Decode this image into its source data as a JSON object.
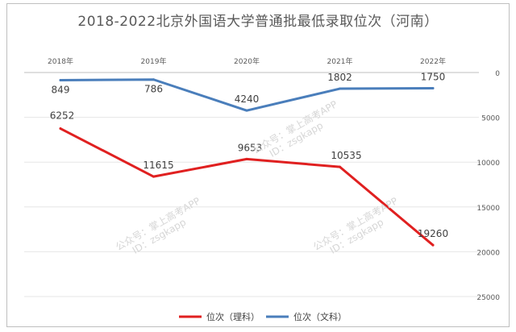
{
  "chart_data": {
    "type": "line",
    "title": "2018-2022北京外国语大学普通批最低录取位次（河南）",
    "categories": [
      "2018年",
      "2019年",
      "2020年",
      "2021年",
      "2022年"
    ],
    "series": [
      {
        "name": "位次（理科）",
        "color": "#e02020",
        "values": [
          6252,
          11615,
          9653,
          10535,
          19260
        ]
      },
      {
        "name": "位次（文科）",
        "color": "#4a7ebb",
        "values": [
          849,
          786,
          4240,
          1802,
          1750
        ]
      }
    ],
    "y_axis": {
      "reversed": true,
      "position": "right",
      "ylim": [
        0,
        25000
      ],
      "ticks": [
        0,
        5000,
        10000,
        15000,
        20000,
        25000
      ]
    },
    "x_axis_position": "top",
    "grid": true,
    "legend": "bottom"
  },
  "watermark": {
    "line1": "公众号：掌上高考APP",
    "line2": "ID：zsgkapp"
  }
}
